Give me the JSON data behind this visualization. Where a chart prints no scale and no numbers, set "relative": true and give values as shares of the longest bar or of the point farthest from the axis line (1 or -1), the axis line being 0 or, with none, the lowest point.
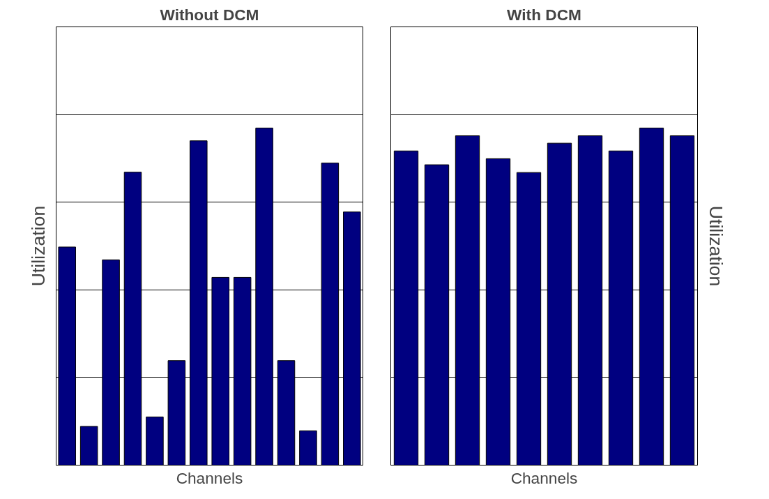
{
  "chart_data": [
    {
      "type": "bar",
      "title": "Without DCM",
      "xlabel": "Channels",
      "ylabel": "Utilization",
      "relative": true,
      "grid": true,
      "color": "#000080",
      "categories": [
        null,
        null,
        null,
        null,
        null,
        null,
        null,
        null,
        null,
        null,
        null,
        null,
        null,
        null
      ],
      "values": [
        0.647,
        0.115,
        0.609,
        0.869,
        0.143,
        0.31,
        0.962,
        0.557,
        0.557,
        1,
        0.31,
        0.102,
        0.896,
        0.751
      ]
    },
    {
      "type": "bar",
      "title": "With DCM",
      "xlabel": "Channels",
      "ylabel": "Utilization",
      "relative": true,
      "grid": true,
      "color": "#000080",
      "categories": [
        null,
        null,
        null,
        null,
        null,
        null,
        null,
        null,
        null,
        null
      ],
      "values": [
        0.932,
        0.891,
        0.977,
        0.909,
        0.868,
        0.955,
        0.977,
        0.932,
        1,
        0.977
      ]
    }
  ]
}
